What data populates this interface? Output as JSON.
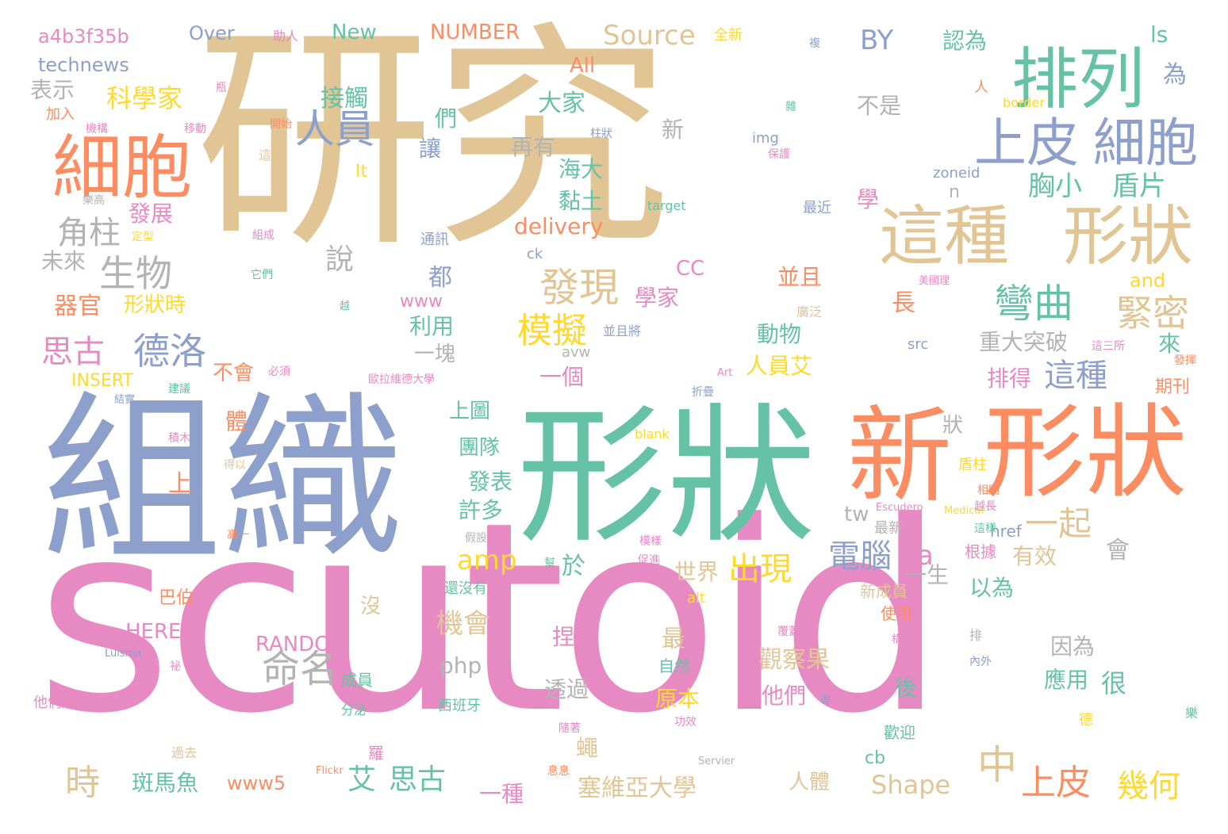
{
  "palette": {
    "tan": "#e2c594",
    "pink": "#e78ac3",
    "blue": "#8da0cb",
    "green": "#66c2a5",
    "orange": "#fc8d62",
    "lime": "#a6d854",
    "yellow": "#ffd92f",
    "gray": "#b3b3b3"
  },
  "words": [
    {
      "text": "研究",
      "color": "tan"
    },
    {
      "text": "scutoid",
      "color": "pink"
    },
    {
      "text": "組織",
      "color": "blue"
    },
    {
      "text": "形狀",
      "color": "green"
    },
    {
      "text": "形狀",
      "color": "orange"
    },
    {
      "text": "新",
      "color": "orange"
    },
    {
      "text": "排列",
      "color": "green"
    },
    {
      "text": "細胞",
      "color": "orange"
    },
    {
      "text": "上皮",
      "color": "blue"
    },
    {
      "text": "細胞",
      "color": "blue"
    },
    {
      "text": "這種",
      "color": "tan"
    },
    {
      "text": "形狀",
      "color": "tan"
    },
    {
      "text": "人員",
      "color": "blue"
    },
    {
      "text": "發現",
      "color": "tan"
    },
    {
      "text": "彎曲",
      "color": "green"
    },
    {
      "text": "緊密",
      "color": "tan"
    },
    {
      "text": "模擬",
      "color": "yellow"
    },
    {
      "text": "德洛",
      "color": "blue"
    },
    {
      "text": "思古",
      "color": "pink"
    },
    {
      "text": "生物",
      "color": "gray"
    },
    {
      "text": "角柱",
      "color": "gray"
    },
    {
      "text": "命名",
      "color": "gray"
    },
    {
      "text": "中",
      "color": "tan"
    },
    {
      "text": "一起",
      "color": "tan"
    },
    {
      "text": "電腦",
      "color": "blue"
    },
    {
      "text": "出現",
      "color": "yellow"
    },
    {
      "text": "上皮",
      "color": "orange"
    },
    {
      "text": "幾何",
      "color": "yellow"
    },
    {
      "text": "這種",
      "color": "blue"
    },
    {
      "text": "科學家",
      "color": "yellow"
    },
    {
      "text": "Source",
      "color": "tan"
    },
    {
      "text": "BY",
      "color": "blue"
    },
    {
      "text": "a4b3f35b",
      "color": "pink"
    },
    {
      "text": "technews",
      "color": "blue"
    },
    {
      "text": "Over",
      "color": "blue"
    },
    {
      "text": "New",
      "color": "green"
    },
    {
      "text": "NUMBER",
      "color": "orange"
    },
    {
      "text": "ls",
      "color": "green"
    },
    {
      "text": "為",
      "color": "blue"
    },
    {
      "text": "All",
      "color": "orange"
    },
    {
      "text": "認為",
      "color": "green"
    },
    {
      "text": "表示",
      "color": "gray"
    },
    {
      "text": "接觸",
      "color": "green"
    },
    {
      "text": "不是",
      "color": "gray"
    },
    {
      "text": "胸小",
      "color": "green"
    },
    {
      "text": "盾片",
      "color": "green"
    },
    {
      "text": "發展",
      "color": "pink"
    },
    {
      "text": "未來",
      "color": "gray"
    },
    {
      "text": "器官",
      "color": "orange"
    },
    {
      "text": "形狀時",
      "color": "yellow"
    },
    {
      "text": "大家",
      "color": "green"
    },
    {
      "text": "再有",
      "color": "gray"
    },
    {
      "text": "海大",
      "color": "green"
    },
    {
      "text": "黏土",
      "color": "green"
    },
    {
      "text": "delivery",
      "color": "orange"
    },
    {
      "text": "說",
      "color": "gray"
    },
    {
      "text": "都",
      "color": "blue"
    },
    {
      "text": "www",
      "color": "pink"
    },
    {
      "text": "學家",
      "color": "pink"
    },
    {
      "text": "CC",
      "color": "pink"
    },
    {
      "text": "並且",
      "color": "orange"
    },
    {
      "text": "長",
      "color": "orange"
    },
    {
      "text": "and",
      "color": "yellow"
    },
    {
      "text": "利用",
      "color": "green"
    },
    {
      "text": "一塊",
      "color": "gray"
    },
    {
      "text": "動物",
      "color": "green"
    },
    {
      "text": "重大突破",
      "color": "gray"
    },
    {
      "text": "排得",
      "color": "pink"
    },
    {
      "text": "來",
      "color": "green"
    },
    {
      "text": "INSERT",
      "color": "yellow"
    },
    {
      "text": "不會",
      "color": "orange"
    },
    {
      "text": "人員艾",
      "color": "yellow"
    },
    {
      "text": "一個",
      "color": "pink"
    },
    {
      "text": "期刊",
      "color": "orange"
    },
    {
      "text": "上圖",
      "color": "green"
    },
    {
      "text": "狀",
      "color": "gray"
    },
    {
      "text": "團隊",
      "color": "green"
    },
    {
      "text": "發表",
      "color": "green"
    },
    {
      "text": "許多",
      "color": "green"
    },
    {
      "text": "amp",
      "color": "yellow"
    },
    {
      "text": "於",
      "color": "green"
    },
    {
      "text": "tw",
      "color": "gray"
    },
    {
      "text": "a",
      "color": "pink"
    },
    {
      "text": "世界",
      "color": "tan"
    },
    {
      "text": "一生",
      "color": "gray"
    },
    {
      "text": "有效",
      "color": "tan"
    },
    {
      "text": "以為",
      "color": "green"
    },
    {
      "text": "機會",
      "color": "tan"
    },
    {
      "text": "最",
      "color": "tan"
    },
    {
      "text": "HERE",
      "color": "pink"
    },
    {
      "text": "RANDOM",
      "color": "pink"
    },
    {
      "text": "php",
      "color": "gray"
    },
    {
      "text": "觀察果",
      "color": "tan"
    },
    {
      "text": "因為",
      "color": "gray"
    },
    {
      "text": "很",
      "color": "green"
    },
    {
      "text": "應用",
      "color": "green"
    },
    {
      "text": "原本",
      "color": "yellow"
    },
    {
      "text": "他們",
      "color": "pink"
    },
    {
      "text": "透過",
      "color": "gray"
    },
    {
      "text": "後",
      "color": "green"
    },
    {
      "text": "時",
      "color": "tan"
    },
    {
      "text": "斑馬魚",
      "color": "green"
    },
    {
      "text": "www5",
      "color": "orange"
    },
    {
      "text": "艾",
      "color": "green"
    },
    {
      "text": "思古",
      "color": "green"
    },
    {
      "text": "一種",
      "color": "pink"
    },
    {
      "text": "塞維亞大學",
      "color": "tan"
    },
    {
      "text": "人體",
      "color": "tan"
    },
    {
      "text": "Shape",
      "color": "tan"
    },
    {
      "text": "cb",
      "color": "green"
    },
    {
      "text": "沒",
      "color": "tan"
    },
    {
      "text": "成員",
      "color": "green"
    },
    {
      "text": "西班牙",
      "color": "green"
    },
    {
      "text": "巴伯",
      "color": "orange"
    },
    {
      "text": "他們將",
      "color": "pink"
    },
    {
      "text": "分泌",
      "color": "green"
    },
    {
      "text": "羅",
      "color": "pink"
    },
    {
      "text": "過去",
      "color": "tan"
    },
    {
      "text": "捏",
      "color": "pink"
    },
    {
      "text": "蠅",
      "color": "tan"
    },
    {
      "text": "自然",
      "color": "green"
    },
    {
      "text": "使用",
      "color": "orange"
    },
    {
      "text": "新成員",
      "color": "tan"
    },
    {
      "text": "歡迎",
      "color": "green"
    },
    {
      "text": "最新",
      "color": "gray"
    },
    {
      "text": "根據",
      "color": "pink"
    },
    {
      "text": "會",
      "color": "gray"
    },
    {
      "text": "上",
      "color": "orange"
    },
    {
      "text": "體",
      "color": "orange"
    },
    {
      "text": "盾柱",
      "color": "yellow"
    },
    {
      "text": "href",
      "color": "blue"
    },
    {
      "text": "alt",
      "color": "yellow"
    },
    {
      "text": "blank",
      "color": "yellow"
    },
    {
      "text": "Escudero",
      "color": "pink"
    },
    {
      "text": "Medical",
      "color": "yellow"
    },
    {
      "text": "Luisma",
      "color": "blue"
    },
    {
      "text": "Servier",
      "color": "gray"
    },
    {
      "text": "Flickr",
      "color": "orange"
    },
    {
      "text": "Art",
      "color": "pink"
    },
    {
      "text": "src",
      "color": "blue"
    },
    {
      "text": "avw",
      "color": "gray"
    },
    {
      "text": "img",
      "color": "blue"
    },
    {
      "text": "zoneid",
      "color": "blue"
    },
    {
      "text": "target",
      "color": "green"
    },
    {
      "text": "border",
      "color": "yellow"
    },
    {
      "text": "ck",
      "color": "blue"
    },
    {
      "text": "It",
      "color": "yellow"
    },
    {
      "text": "n",
      "color": "gray"
    },
    {
      "text": "讓",
      "color": "blue"
    },
    {
      "text": "們",
      "color": "green"
    },
    {
      "text": "學",
      "color": "pink"
    },
    {
      "text": "新",
      "color": "gray"
    },
    {
      "text": "全新",
      "color": "yellow"
    },
    {
      "text": "助人",
      "color": "pink"
    },
    {
      "text": "加入",
      "color": "orange"
    },
    {
      "text": "機構",
      "color": "pink"
    },
    {
      "text": "移動",
      "color": "pink"
    },
    {
      "text": "開始",
      "color": "orange"
    },
    {
      "text": "這份",
      "color": "tan"
    },
    {
      "text": "組成",
      "color": "pink"
    },
    {
      "text": "它們",
      "color": "green"
    },
    {
      "text": "通訊",
      "color": "blue"
    },
    {
      "text": "最近",
      "color": "blue"
    },
    {
      "text": "保護",
      "color": "pink"
    },
    {
      "text": "柱狀",
      "color": "blue"
    },
    {
      "text": "廣泛",
      "color": "tan"
    },
    {
      "text": "並且將",
      "color": "blue"
    },
    {
      "text": "必須",
      "color": "pink"
    },
    {
      "text": "歐拉維德大學",
      "color": "pink"
    },
    {
      "text": "建議",
      "color": "green"
    },
    {
      "text": "結實",
      "color": "blue"
    },
    {
      "text": "折疊",
      "color": "blue"
    },
    {
      "text": "發揮",
      "color": "orange"
    },
    {
      "text": "這三所",
      "color": "pink"
    },
    {
      "text": "美國理",
      "color": "pink"
    },
    {
      "text": "積木",
      "color": "pink"
    },
    {
      "text": "得以",
      "color": "tan"
    },
    {
      "text": "高一",
      "color": "orange"
    },
    {
      "text": "相關",
      "color": "orange"
    },
    {
      "text": "這樣",
      "color": "green"
    },
    {
      "text": "越長",
      "color": "pink"
    },
    {
      "text": "假設",
      "color": "gray"
    },
    {
      "text": "模樣",
      "color": "pink"
    },
    {
      "text": "促進",
      "color": "pink"
    },
    {
      "text": "還沒有",
      "color": "green"
    },
    {
      "text": "覆蓋",
      "color": "pink"
    },
    {
      "text": "構成",
      "color": "pink"
    },
    {
      "text": "內外",
      "color": "blue"
    },
    {
      "text": "隨著",
      "color": "pink"
    },
    {
      "text": "功效",
      "color": "pink"
    },
    {
      "text": "息息",
      "color": "orange"
    },
    {
      "text": "德",
      "color": "yellow"
    },
    {
      "text": "樂",
      "color": "green"
    },
    {
      "text": "奧",
      "color": "pink"
    },
    {
      "text": "祕",
      "color": "pink"
    },
    {
      "text": "幫",
      "color": "green"
    },
    {
      "text": "排",
      "color": "gray"
    },
    {
      "text": "瓶",
      "color": "pink"
    },
    {
      "text": "雜",
      "color": "green"
    },
    {
      "text": "樂高",
      "color": "gray"
    },
    {
      "text": "定型",
      "color": "yellow"
    },
    {
      "text": "越",
      "color": "green"
    },
    {
      "text": "複",
      "color": "blue"
    },
    {
      "text": "人",
      "color": "orange"
    },
    {
      "text": "粵",
      "color": "blue"
    }
  ]
}
